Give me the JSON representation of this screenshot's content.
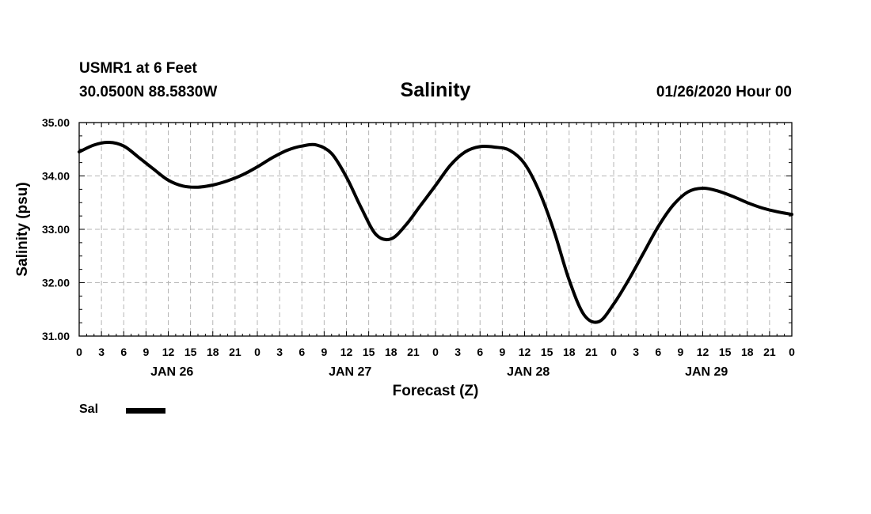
{
  "header": {
    "station": "USMR1 at 6 Feet",
    "coordinates": "30.0500N 88.5830W",
    "run_time": "01/26/2020 Hour 00"
  },
  "chart_data": {
    "type": "line",
    "title": "Salinity",
    "xlabel": "Forecast (Z)",
    "ylabel": "Salinity (psu)",
    "ylim": [
      31.0,
      35.0
    ],
    "y_ticks": [
      "31.00",
      "32.00",
      "33.00",
      "34.00",
      "35.00"
    ],
    "x_range_hours": [
      0,
      96
    ],
    "x_tick_labels": [
      "0",
      "3",
      "6",
      "9",
      "12",
      "15",
      "18",
      "21",
      "0",
      "3",
      "6",
      "9",
      "12",
      "15",
      "18",
      "21",
      "0",
      "3",
      "6",
      "9",
      "12",
      "15",
      "18",
      "21",
      "0",
      "3",
      "6",
      "9",
      "12",
      "15",
      "18",
      "21",
      "0"
    ],
    "day_labels": [
      "JAN 26",
      "JAN 27",
      "JAN 28",
      "JAN 29"
    ],
    "grid": true,
    "legend_position": "bottom-left",
    "series": [
      {
        "name": "Sal",
        "color": "#000000",
        "x_hours": [
          0,
          2,
          4,
          6,
          8,
          10,
          12,
          14,
          16,
          18,
          20,
          22,
          24,
          26,
          28,
          30,
          32,
          34,
          36,
          38,
          40,
          42,
          44,
          46,
          48,
          50,
          52,
          54,
          56,
          58,
          60,
          62,
          64,
          66,
          68,
          70,
          72,
          74,
          76,
          78,
          80,
          82,
          84,
          86,
          88,
          90,
          92,
          94,
          96
        ],
        "values": [
          34.45,
          34.58,
          34.63,
          34.56,
          34.35,
          34.13,
          33.92,
          33.81,
          33.79,
          33.83,
          33.91,
          34.02,
          34.17,
          34.34,
          34.48,
          34.56,
          34.58,
          34.42,
          33.98,
          33.4,
          32.9,
          32.82,
          33.08,
          33.45,
          33.82,
          34.2,
          34.45,
          34.55,
          34.54,
          34.48,
          34.23,
          33.7,
          32.95,
          32.05,
          31.4,
          31.27,
          31.6,
          32.05,
          32.55,
          33.05,
          33.45,
          33.7,
          33.77,
          33.72,
          33.62,
          33.5,
          33.4,
          33.33,
          33.28
        ]
      }
    ]
  }
}
